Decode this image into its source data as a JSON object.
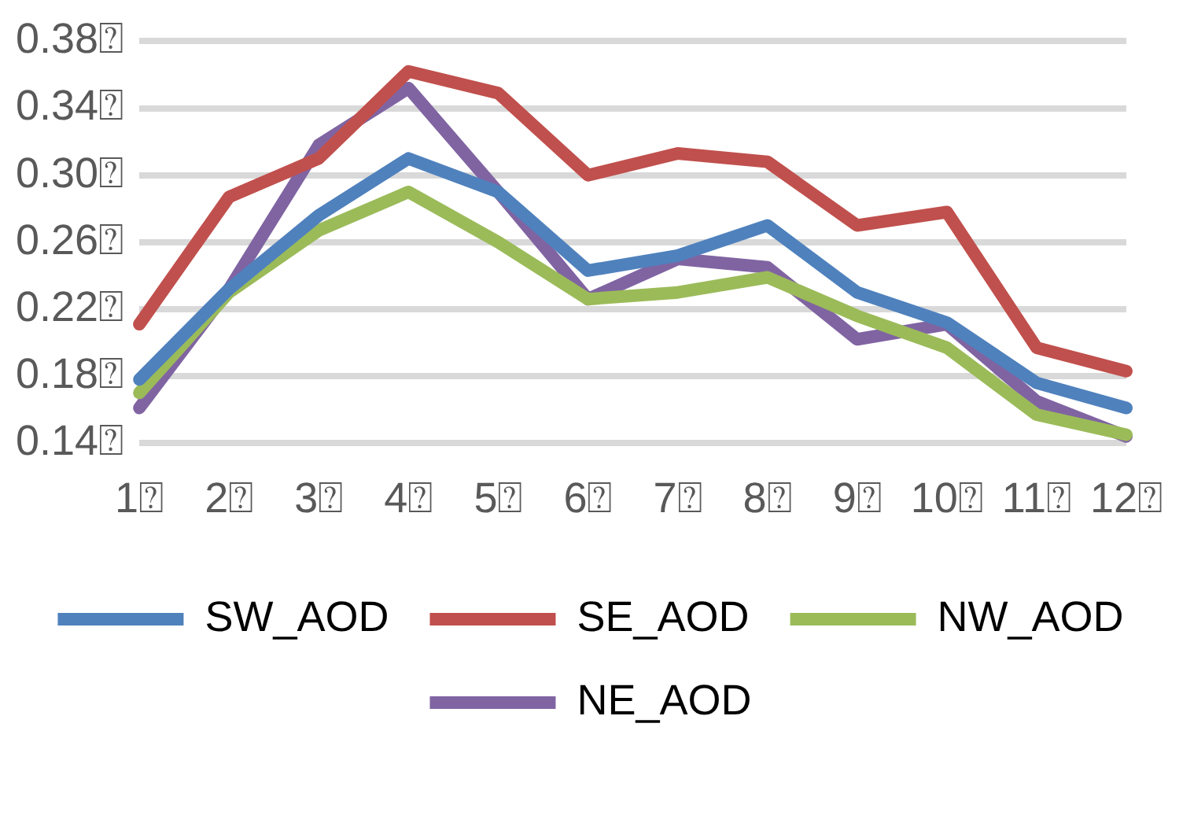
{
  "chart_data": {
    "type": "line",
    "categories": [
      "1⍰",
      "2⍰",
      "3⍰",
      "4⍰",
      "5⍰",
      "6⍰",
      "7⍰",
      "8⍰",
      "9⍰",
      "10⍰",
      "11⍰",
      "12⍰"
    ],
    "series": [
      {
        "name": "SW_AOD",
        "color": "#4f81bd",
        "values": [
          0.178,
          0.232,
          0.276,
          0.31,
          0.29,
          0.243,
          0.252,
          0.27,
          0.23,
          0.212,
          0.176,
          0.161
        ]
      },
      {
        "name": "SE_AOD",
        "color": "#c0504d",
        "values": [
          0.211,
          0.287,
          0.31,
          0.362,
          0.349,
          0.3,
          0.313,
          0.308,
          0.27,
          0.278,
          0.197,
          0.183
        ]
      },
      {
        "name": "NW_AOD",
        "color": "#9bbb59",
        "values": [
          0.17,
          0.23,
          0.267,
          0.29,
          0.26,
          0.226,
          0.23,
          0.239,
          0.216,
          0.197,
          0.157,
          0.145
        ]
      },
      {
        "name": "NE_AOD",
        "color": "#8064a2",
        "values": [
          0.161,
          0.232,
          0.318,
          0.352,
          0.29,
          0.226,
          0.25,
          0.245,
          0.202,
          0.211,
          0.165,
          0.144
        ]
      }
    ],
    "ylim": [
      0.14,
      0.38
    ],
    "yticks": [
      {
        "value": 0.14,
        "label": "0.14⍰"
      },
      {
        "value": 0.18,
        "label": "0.18⍰"
      },
      {
        "value": 0.22,
        "label": "0.22⍰"
      },
      {
        "value": 0.26,
        "label": "0.26⍰"
      },
      {
        "value": 0.3,
        "label": "0.30⍰"
      },
      {
        "value": 0.34,
        "label": "0.34⍰"
      },
      {
        "value": 0.38,
        "label": "0.38⍰"
      }
    ],
    "grid": "y",
    "legend": "bottom",
    "marker": "none",
    "line_style": "solid"
  }
}
